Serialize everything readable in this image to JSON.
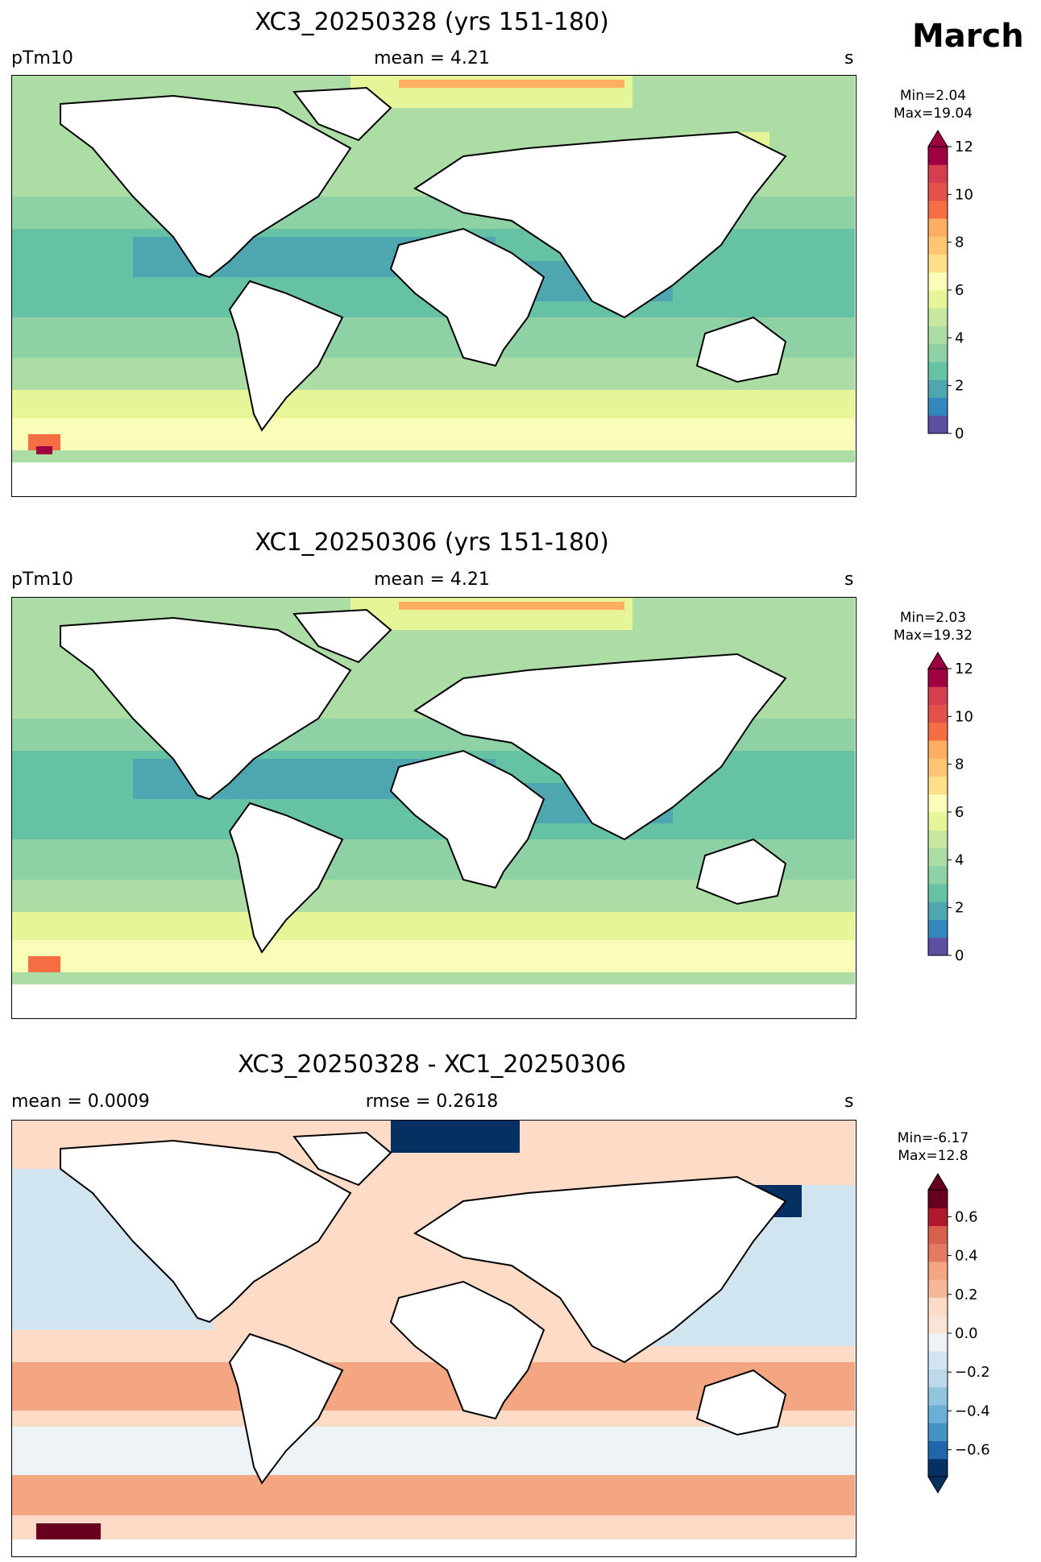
{
  "month": "March",
  "panels": [
    {
      "title": "XC3_20250328 (yrs 151-180)",
      "left_label": "pTm10",
      "center_label": "mean = 4.21",
      "right_label": "s",
      "min_label": "Min=2.04",
      "max_label": "Max=19.04",
      "colorbar": {
        "ticks": [
          "0",
          "2",
          "4",
          "6",
          "8",
          "10",
          "12"
        ],
        "colors": [
          "#5e4fa2",
          "#3288bd",
          "#4ea6b0",
          "#66c2a5",
          "#8ed1a4",
          "#abdda4",
          "#c6e8a0",
          "#e6f598",
          "#fafdb8",
          "#fee08b",
          "#fdc574",
          "#fdae61",
          "#f46d43",
          "#e2524a",
          "#d53e4f",
          "#9e0142"
        ]
      }
    },
    {
      "title": "XC1_20250306 (yrs 151-180)",
      "left_label": "pTm10",
      "center_label": "mean = 4.21",
      "right_label": "s",
      "min_label": "Min=2.03",
      "max_label": "Max=19.32",
      "colorbar": {
        "ticks": [
          "0",
          "2",
          "4",
          "6",
          "8",
          "10",
          "12"
        ],
        "colors": [
          "#5e4fa2",
          "#3288bd",
          "#4ea6b0",
          "#66c2a5",
          "#8ed1a4",
          "#abdda4",
          "#c6e8a0",
          "#e6f598",
          "#fafdb8",
          "#fee08b",
          "#fdc574",
          "#fdae61",
          "#f46d43",
          "#e2524a",
          "#d53e4f",
          "#9e0142"
        ]
      }
    },
    {
      "title": "XC3_20250328 - XC1_20250306",
      "left_label": "mean = 0.0009",
      "center_label": "rmse = 0.2618",
      "right_label": "s",
      "min_label": "Min=-6.17",
      "max_label": "Max=12.8",
      "colorbar": {
        "ticks": [
          "0.6",
          "0.4",
          "0.2",
          "0.0",
          "−0.2",
          "−0.4",
          "−0.6"
        ],
        "colors": [
          "#053061",
          "#2166ac",
          "#4393c3",
          "#6baed6",
          "#92c5de",
          "#bcd8ea",
          "#d1e5f0",
          "#eef3f7",
          "#fbe3d6",
          "#fddbc7",
          "#f7b799",
          "#f4a582",
          "#e27b62",
          "#d6604d",
          "#b2182b",
          "#67001f"
        ]
      }
    }
  ]
}
